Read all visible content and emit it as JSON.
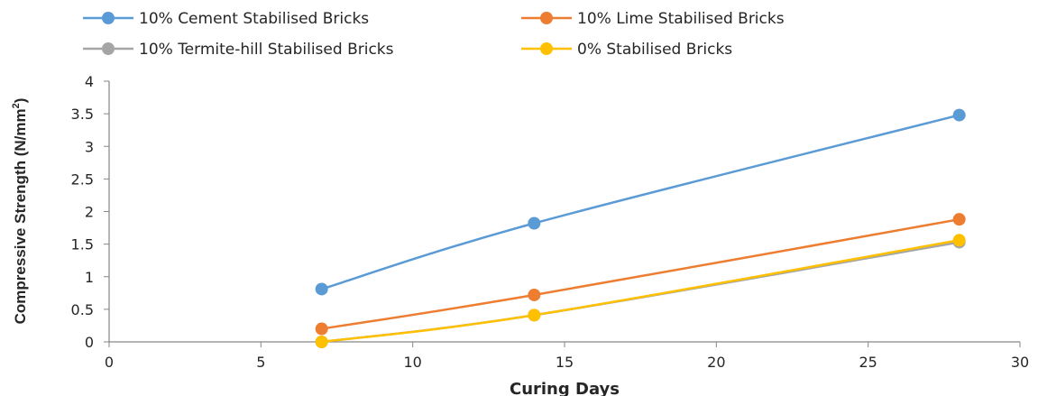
{
  "chart_data": {
    "type": "scatter",
    "xlabel": "Curing Days",
    "ylabel": "Compressive Strength (N/mm",
    "ylabel_superscript": "2",
    "ylabel_suffix": ")",
    "xlim": [
      0,
      30
    ],
    "ylim": [
      0,
      4
    ],
    "x_ticks": [
      "0",
      "5",
      "10",
      "15",
      "20",
      "25",
      "30"
    ],
    "y_ticks": [
      "0",
      "0.5",
      "1",
      "1.5",
      "2",
      "2.5",
      "3",
      "3.5",
      "4"
    ],
    "grid": false,
    "legend_position": "top",
    "smoothed": true,
    "series": [
      {
        "name": "10% Cement Stabilised Bricks",
        "color": "#5b9bd5",
        "x": [
          7,
          14,
          28
        ],
        "y": [
          0.81,
          1.82,
          3.48
        ]
      },
      {
        "name": "10% Lime Stabilised Bricks",
        "color": "#ed7d31",
        "x": [
          7,
          14,
          28
        ],
        "y": [
          0.2,
          0.72,
          1.88
        ]
      },
      {
        "name": "10% Termite-hill Stabilised Bricks",
        "color": "#a5a5a5",
        "x": [
          7,
          14,
          28
        ],
        "y": [
          0.0,
          0.41,
          1.53
        ]
      },
      {
        "name": "0% Stabilised Bricks",
        "color": "#ffc000",
        "x": [
          7,
          14,
          28
        ],
        "y": [
          0.0,
          0.41,
          1.56
        ]
      }
    ]
  }
}
